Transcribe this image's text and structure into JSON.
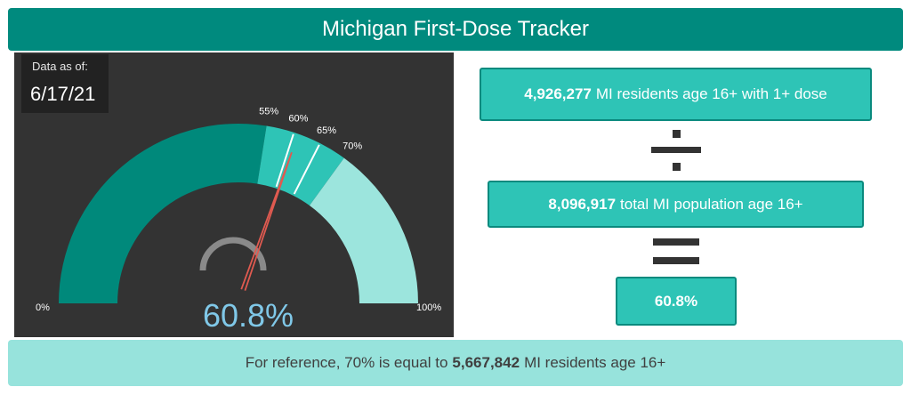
{
  "title": "Michigan First-Dose Tracker",
  "date_box": {
    "label": "Data as of:",
    "value": "6/17/21"
  },
  "gauge": {
    "value_label": "60.8%",
    "value_fraction": 0.608,
    "min_label": "0%",
    "max_label": "100%",
    "bands": [
      {
        "from": 0.0,
        "to": 0.55,
        "color": "#00897b"
      },
      {
        "from": 0.55,
        "to": 0.65,
        "color": "#2ec4b6"
      },
      {
        "from": 0.65,
        "to": 0.7,
        "color": "#2ec4b6"
      },
      {
        "from": 0.7,
        "to": 1.0,
        "color": "#9ce5dd"
      }
    ],
    "ticks": [
      {
        "fraction": 0.55,
        "label": "55%"
      },
      {
        "fraction": 0.6,
        "label": "60%"
      },
      {
        "fraction": 0.65,
        "label": "65%"
      },
      {
        "fraction": 0.7,
        "label": "70%"
      }
    ],
    "tick_line_fractions": [
      0.6,
      0.65
    ],
    "needle_color": "#e05a50",
    "value_color": "#80c8e8"
  },
  "formula": {
    "numerator_value": "4,926,277",
    "numerator_text": "MI residents age 16+ with 1+ dose",
    "divide_symbol": "÷",
    "denominator_value": "8,096,917",
    "denominator_text": "total MI population age 16+",
    "equals_symbol": "=",
    "result": "60.8%"
  },
  "reference": {
    "prefix": "For reference, 70% is equal to",
    "value": "5,667,842",
    "suffix": "MI residents age 16+"
  },
  "colors": {
    "title_bg": "#008a7e",
    "panel_bg": "#333333",
    "box_fill": "#2ec4b6",
    "box_border": "#0a8a7e",
    "reference_bg": "#97e3dc"
  }
}
